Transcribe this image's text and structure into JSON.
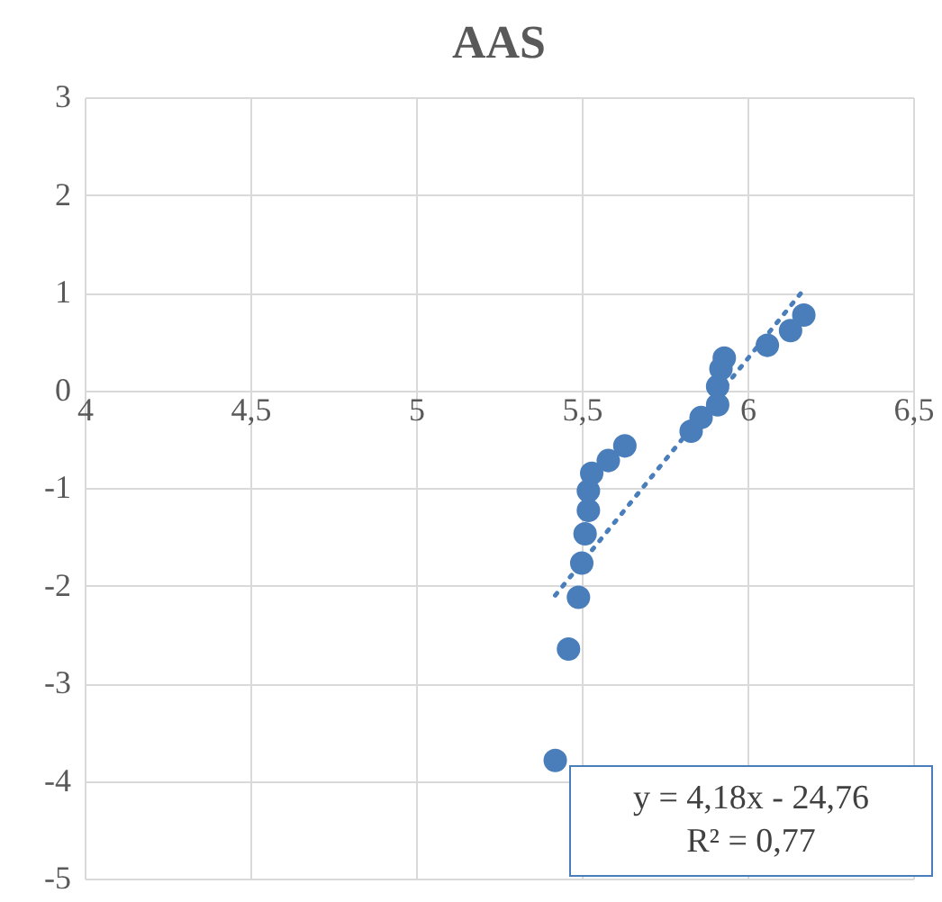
{
  "chart_data": {
    "type": "scatter",
    "title": "AAS",
    "series": [
      {
        "color": "#4a7ebb",
        "marker": "circle",
        "x": [
          5.42,
          5.46,
          5.49,
          5.5,
          5.51,
          5.52,
          5.52,
          5.53,
          5.58,
          5.63,
          5.83,
          5.86,
          5.91,
          5.91,
          5.92,
          5.93,
          6.06,
          6.13,
          6.17
        ],
        "values": [
          -3.79,
          -2.65,
          -2.12,
          -1.77,
          -1.47,
          -1.23,
          -1.03,
          -0.85,
          -0.72,
          -0.57,
          -0.42,
          -0.28,
          -0.15,
          0.04,
          0.22,
          0.33,
          0.46,
          0.61,
          0.77
        ]
      },
      {
        "type": "line",
        "color": "#4a7ebb",
        "line_style": "dotted",
        "x": [
          5.42,
          6.17
        ],
        "values": [
          -2.1,
          1.03
        ]
      }
    ],
    "xlim": [
      4,
      6.5
    ],
    "xticks": [
      4,
      {
        "value": 4.5,
        "label": "4,5"
      },
      5,
      {
        "value": 5.5,
        "label": "5,5"
      },
      6,
      {
        "value": 6.5,
        "label": "6,5"
      }
    ],
    "ylim": [
      -5,
      3
    ],
    "yticks": [
      -5,
      -4,
      -3,
      -2,
      -1,
      0,
      1,
      2,
      3
    ],
    "grid": true,
    "annotations": [
      "y = 4,18x - 24,76\nR² = 0,77"
    ]
  }
}
